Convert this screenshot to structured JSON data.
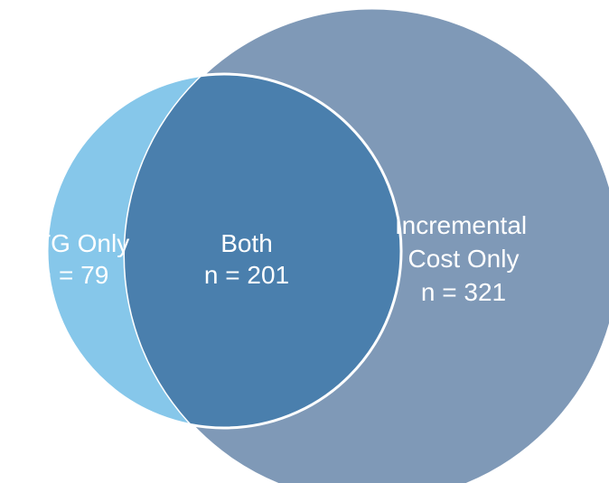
{
  "venn": {
    "ntg_only": {
      "line1": "NTG Only",
      "line2": "n = 79",
      "color": "#86c7ea"
    },
    "both": {
      "line1": "Both",
      "line2": "n = 201",
      "color": "#4a7fad"
    },
    "incremental_only": {
      "line1": "Incremental",
      "line2": "Cost Only",
      "line3": "n = 321",
      "color": "#7f99b7"
    },
    "outline_color": "#ffffff"
  }
}
